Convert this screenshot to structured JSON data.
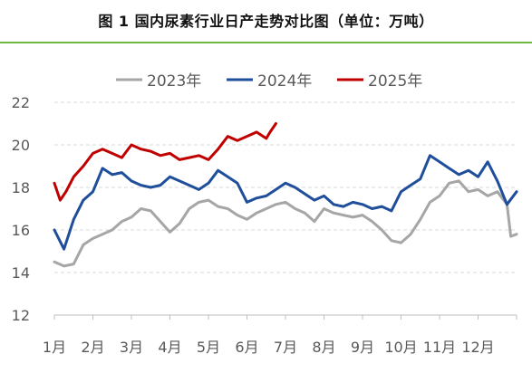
{
  "header": {
    "title": "图 1  国内尿素行业日产走势对比图（单位：万吨）"
  },
  "chart_data": {
    "type": "line",
    "title": "图 1  国内尿素行业日产走势对比图（单位：万吨）",
    "unit": "万吨",
    "xlabel": "",
    "ylabel": "",
    "ylim": [
      12,
      22
    ],
    "yticks": [
      12,
      14,
      16,
      18,
      20,
      22
    ],
    "xlim": [
      0,
      12
    ],
    "x_tick_labels": [
      "1月",
      "2月",
      "3月",
      "4月",
      "5月",
      "6月",
      "7月",
      "8月",
      "9月",
      "10月",
      "11月",
      "12月"
    ],
    "grid": "horizontal dashed",
    "legend_position": "top",
    "series": [
      {
        "name": "2023年",
        "color": "#a6a6a6",
        "x": [
          0.0,
          0.25,
          0.5,
          0.75,
          1.0,
          1.25,
          1.5,
          1.75,
          2.0,
          2.25,
          2.5,
          2.75,
          3.0,
          3.25,
          3.5,
          3.75,
          4.0,
          4.25,
          4.5,
          4.75,
          5.0,
          5.25,
          5.5,
          5.75,
          6.0,
          6.25,
          6.5,
          6.75,
          7.0,
          7.25,
          7.5,
          7.75,
          8.0,
          8.25,
          8.5,
          8.75,
          9.0,
          9.25,
          9.5,
          9.75,
          10.0,
          10.25,
          10.5,
          10.75,
          11.0,
          11.25,
          11.5,
          11.75,
          11.85,
          12.0
        ],
        "values": [
          14.5,
          14.3,
          14.4,
          15.3,
          15.6,
          15.8,
          16.0,
          16.4,
          16.6,
          17.0,
          16.9,
          16.4,
          15.9,
          16.3,
          17.0,
          17.3,
          17.4,
          17.1,
          17.0,
          16.7,
          16.5,
          16.8,
          17.0,
          17.2,
          17.3,
          17.0,
          16.8,
          16.4,
          17.0,
          16.8,
          16.7,
          16.6,
          16.7,
          16.4,
          16.0,
          15.5,
          15.4,
          15.8,
          16.5,
          17.3,
          17.6,
          18.2,
          18.3,
          17.8,
          17.9,
          17.6,
          17.8,
          17.2,
          15.7,
          15.8
        ]
      },
      {
        "name": "2024年",
        "color": "#1f4e9a",
        "x": [
          0.0,
          0.25,
          0.5,
          0.75,
          1.0,
          1.25,
          1.5,
          1.75,
          2.0,
          2.25,
          2.5,
          2.75,
          3.0,
          3.25,
          3.5,
          3.75,
          4.0,
          4.25,
          4.5,
          4.75,
          5.0,
          5.25,
          5.5,
          5.75,
          6.0,
          6.25,
          6.5,
          6.75,
          7.0,
          7.25,
          7.5,
          7.75,
          8.0,
          8.25,
          8.5,
          8.75,
          9.0,
          9.25,
          9.5,
          9.75,
          10.0,
          10.25,
          10.5,
          10.75,
          11.0,
          11.25,
          11.5,
          11.75,
          12.0
        ],
        "values": [
          16.0,
          15.1,
          16.5,
          17.4,
          17.8,
          18.9,
          18.6,
          18.7,
          18.3,
          18.1,
          18.0,
          18.1,
          18.5,
          18.3,
          18.1,
          17.9,
          18.2,
          18.8,
          18.5,
          18.2,
          17.3,
          17.5,
          17.6,
          17.9,
          18.2,
          18.0,
          17.7,
          17.4,
          17.6,
          17.2,
          17.1,
          17.3,
          17.2,
          17.0,
          17.1,
          16.9,
          17.8,
          18.1,
          18.4,
          19.5,
          19.2,
          18.9,
          18.6,
          18.8,
          18.5,
          19.2,
          18.3,
          17.2,
          17.8
        ]
      },
      {
        "name": "2025年",
        "color": "#c00000",
        "x": [
          0.0,
          0.15,
          0.3,
          0.5,
          0.75,
          1.0,
          1.25,
          1.5,
          1.75,
          2.0,
          2.25,
          2.5,
          2.75,
          3.0,
          3.25,
          3.5,
          3.75,
          4.0,
          4.25,
          4.5,
          4.75,
          5.0,
          5.25,
          5.5,
          5.6,
          5.75
        ],
        "values": [
          18.2,
          17.4,
          17.8,
          18.5,
          19.0,
          19.6,
          19.8,
          19.6,
          19.4,
          20.0,
          19.8,
          19.7,
          19.5,
          19.6,
          19.3,
          19.4,
          19.5,
          19.3,
          19.8,
          20.4,
          20.2,
          20.4,
          20.6,
          20.3,
          20.6,
          21.0
        ]
      }
    ]
  }
}
